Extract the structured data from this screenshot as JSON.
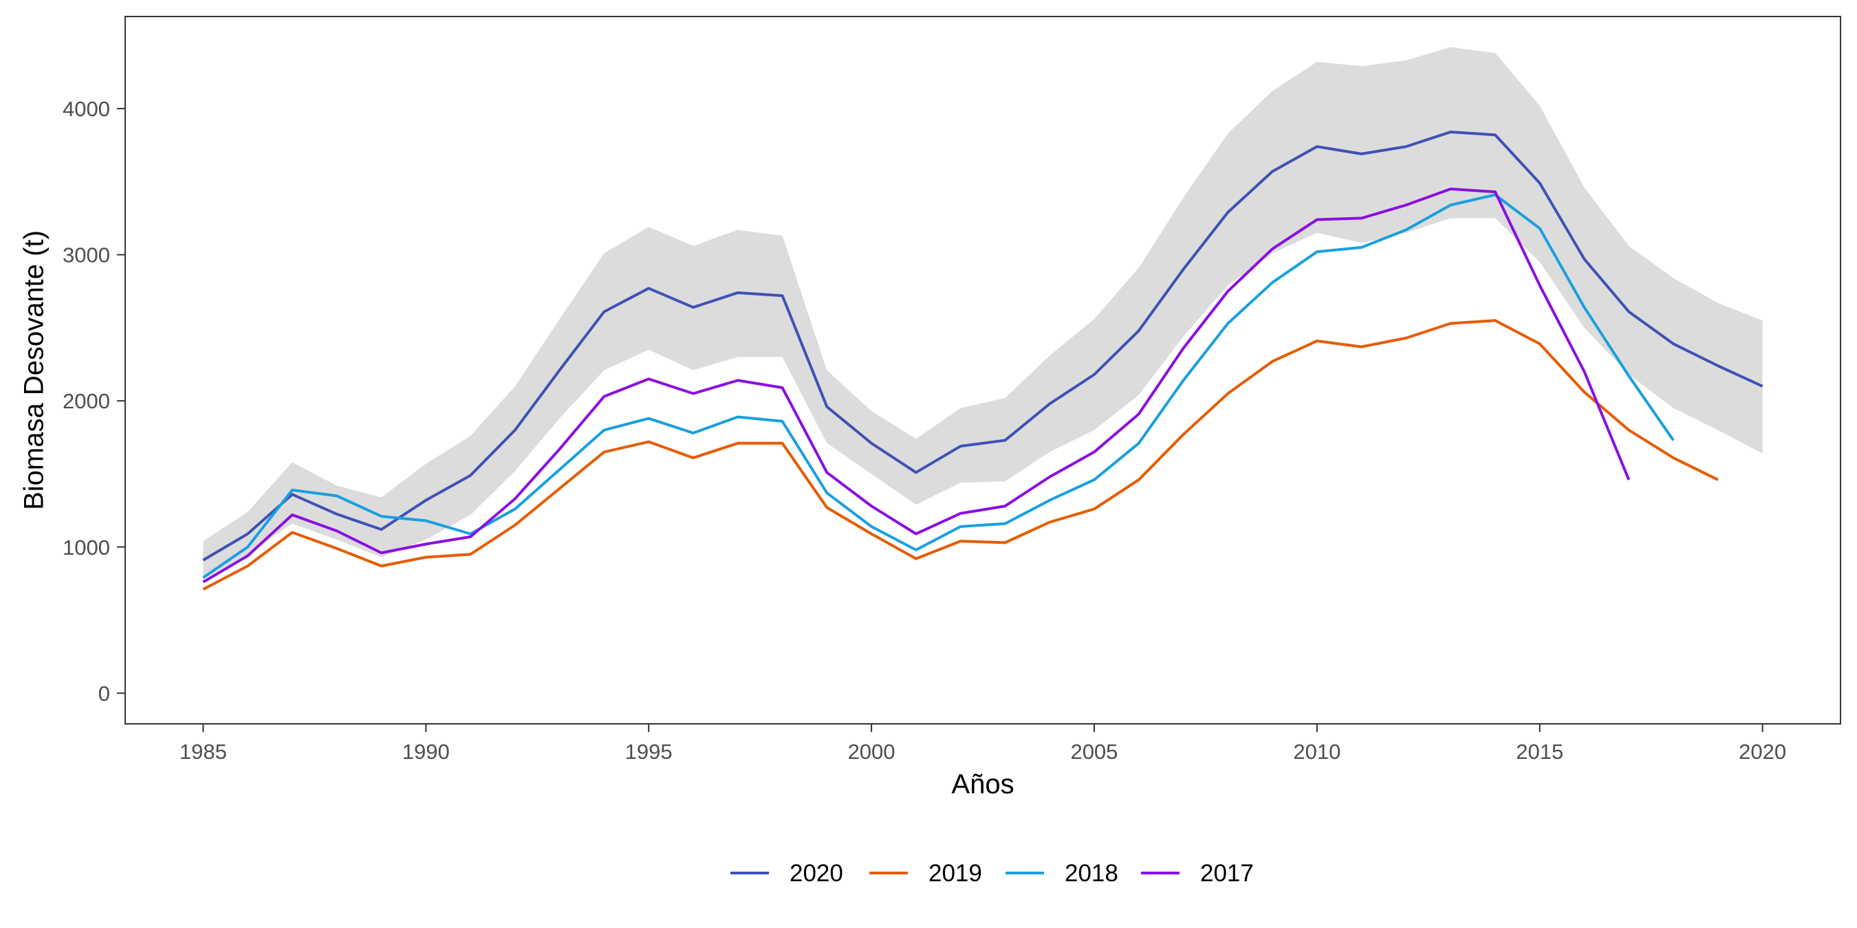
{
  "chart_data": {
    "type": "line",
    "xlabel": "Años",
    "ylabel": "Biomasa Desovante (t)",
    "xlim": [
      1983.25,
      2021.75
    ],
    "ylim": [
      -210,
      4630
    ],
    "x_ticks": [
      1985,
      1990,
      1995,
      2000,
      2005,
      2010,
      2015,
      2020
    ],
    "y_ticks": [
      0,
      1000,
      2000,
      3000,
      4000
    ],
    "grid": false,
    "legend_position": "bottom",
    "band": {
      "color": "#dcdcdc",
      "x": [
        1985,
        1986,
        1987,
        1988,
        1989,
        1990,
        1991,
        1992,
        1993,
        1994,
        1995,
        1996,
        1997,
        1998,
        1999,
        2000,
        2001,
        2002,
        2003,
        2004,
        2005,
        2006,
        2007,
        2008,
        2009,
        2010,
        2011,
        2012,
        2013,
        2014,
        2015,
        2016,
        2017,
        2018,
        2019,
        2020
      ],
      "lower": [
        780,
        950,
        1160,
        1050,
        930,
        1050,
        1220,
        1520,
        1880,
        2210,
        2350,
        2210,
        2300,
        2300,
        1710,
        1500,
        1290,
        1440,
        1450,
        1650,
        1800,
        2040,
        2440,
        2790,
        3010,
        3150,
        3080,
        3150,
        3250,
        3250,
        2950,
        2500,
        2180,
        1950,
        1800,
        1640
      ],
      "upper": [
        1040,
        1240,
        1580,
        1420,
        1340,
        1570,
        1760,
        2100,
        2560,
        3010,
        3190,
        3060,
        3170,
        3130,
        2210,
        1930,
        1740,
        1950,
        2020,
        2310,
        2560,
        2910,
        3390,
        3830,
        4120,
        4320,
        4290,
        4330,
        4420,
        4380,
        4020,
        3460,
        3060,
        2840,
        2670,
        2550
      ]
    },
    "series": [
      {
        "name": "2020",
        "color": "#3f51b5",
        "x": [
          1985,
          1986,
          1987,
          1988,
          1989,
          1990,
          1991,
          1992,
          1993,
          1994,
          1995,
          1996,
          1997,
          1998,
          1999,
          2000,
          2001,
          2002,
          2003,
          2004,
          2005,
          2006,
          2007,
          2008,
          2009,
          2010,
          2011,
          2012,
          2013,
          2014,
          2015,
          2016,
          2017,
          2018,
          2019,
          2020
        ],
        "values": [
          910,
          1090,
          1360,
          1225,
          1120,
          1320,
          1490,
          1800,
          2210,
          2610,
          2770,
          2640,
          2740,
          2720,
          1960,
          1710,
          1510,
          1690,
          1730,
          1980,
          2180,
          2480,
          2900,
          3290,
          3570,
          3740,
          3690,
          3740,
          3840,
          3820,
          3490,
          2970,
          2610,
          2390,
          2240,
          2100
        ]
      },
      {
        "name": "2019",
        "color": "#e65c00",
        "x": [
          1985,
          1986,
          1987,
          1988,
          1989,
          1990,
          1991,
          1992,
          1993,
          1994,
          1995,
          1996,
          1997,
          1998,
          1999,
          2000,
          2001,
          2002,
          2003,
          2004,
          2005,
          2006,
          2007,
          2008,
          2009,
          2010,
          2011,
          2012,
          2013,
          2014,
          2015,
          2016,
          2017,
          2018,
          2019
        ],
        "values": [
          710,
          870,
          1100,
          990,
          870,
          930,
          950,
          1150,
          1400,
          1650,
          1720,
          1610,
          1710,
          1710,
          1270,
          1090,
          920,
          1040,
          1030,
          1170,
          1260,
          1460,
          1770,
          2050,
          2270,
          2410,
          2370,
          2430,
          2530,
          2550,
          2390,
          2060,
          1800,
          1610,
          1460
        ]
      },
      {
        "name": "2018",
        "color": "#1a9fe0",
        "x": [
          1985,
          1986,
          1987,
          1988,
          1989,
          1990,
          1991,
          1992,
          1993,
          1994,
          1995,
          1996,
          1997,
          1998,
          1999,
          2000,
          2001,
          2002,
          2003,
          2004,
          2005,
          2006,
          2007,
          2008,
          2009,
          2010,
          2011,
          2012,
          2013,
          2014,
          2015,
          2016,
          2017,
          2018
        ],
        "values": [
          790,
          1000,
          1390,
          1350,
          1210,
          1180,
          1090,
          1260,
          1530,
          1800,
          1880,
          1780,
          1890,
          1860,
          1370,
          1140,
          980,
          1140,
          1160,
          1320,
          1460,
          1710,
          2140,
          2530,
          2810,
          3020,
          3050,
          3170,
          3340,
          3410,
          3180,
          2640,
          2170,
          1730
        ]
      },
      {
        "name": "2017",
        "color": "#8a0fe0",
        "x": [
          1985,
          1986,
          1987,
          1988,
          1989,
          1990,
          1991,
          1992,
          1993,
          1994,
          1995,
          1996,
          1997,
          1998,
          1999,
          2000,
          2001,
          2002,
          2003,
          2004,
          2005,
          2006,
          2007,
          2008,
          2009,
          2010,
          2011,
          2012,
          2013,
          2014,
          2015,
          2016,
          2017
        ],
        "values": [
          760,
          940,
          1220,
          1110,
          960,
          1020,
          1070,
          1330,
          1670,
          2030,
          2150,
          2050,
          2140,
          2090,
          1510,
          1280,
          1090,
          1230,
          1280,
          1480,
          1650,
          1910,
          2360,
          2750,
          3040,
          3240,
          3250,
          3340,
          3450,
          3430,
          2790,
          2200,
          1460
        ]
      }
    ]
  }
}
